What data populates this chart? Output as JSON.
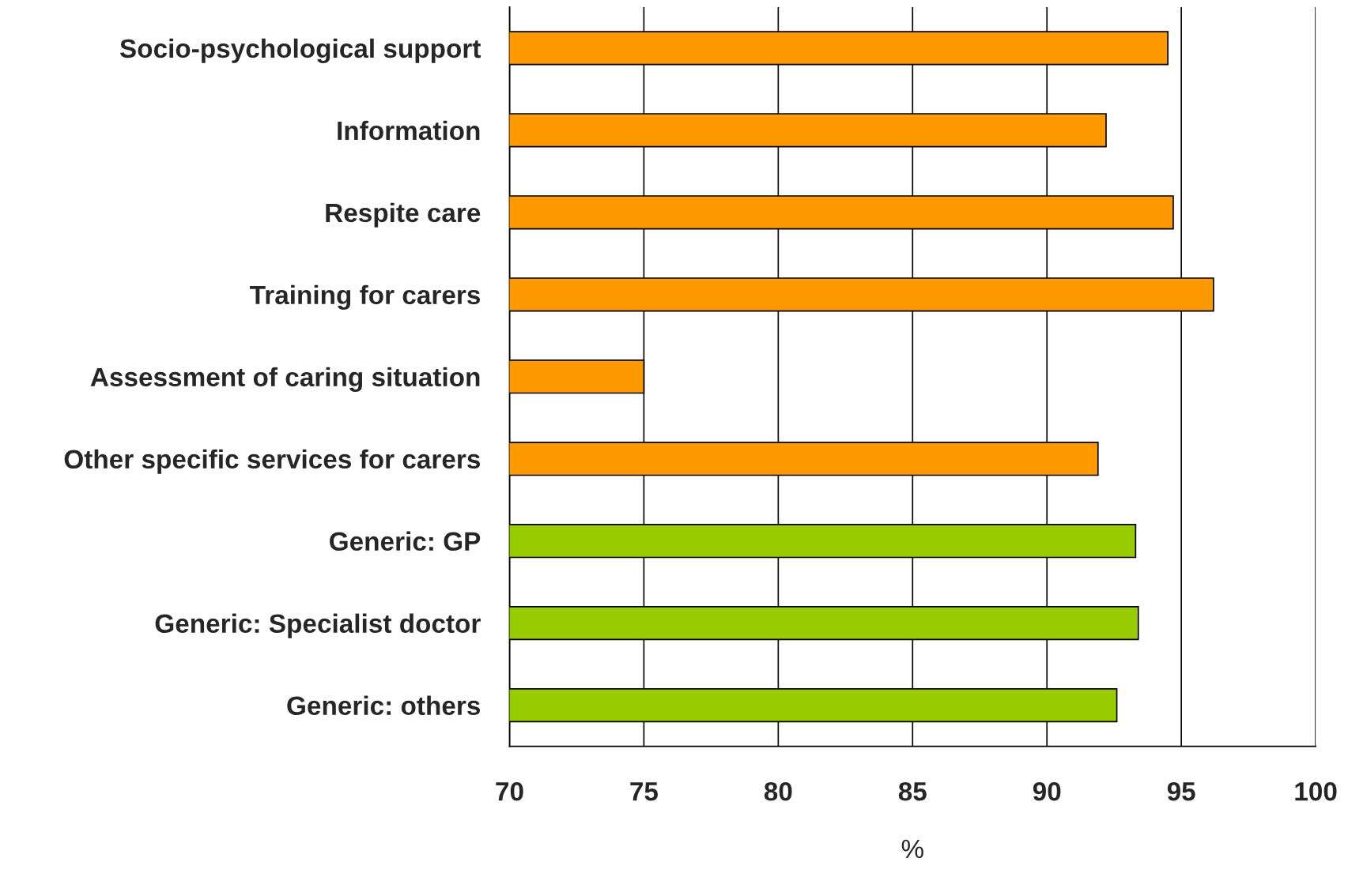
{
  "chart_data": {
    "type": "bar",
    "orientation": "horizontal",
    "xlabel": "%",
    "categories": [
      "Socio-psychological support",
      "Information",
      "Respite care",
      "Training for carers",
      "Assessment of caring situation",
      "Other specific services for carers",
      "Generic: GP",
      "Generic: Specialist doctor",
      "Generic: others"
    ],
    "values": [
      94.5,
      92.2,
      94.7,
      96.2,
      75.0,
      91.9,
      93.3,
      93.4,
      92.6
    ],
    "colors": [
      "#ff9900",
      "#ff9900",
      "#ff9900",
      "#ff9900",
      "#ff9900",
      "#ff9900",
      "#99cc00",
      "#99cc00",
      "#99cc00"
    ],
    "xlim": [
      70,
      100
    ],
    "xticks": [
      70,
      75,
      80,
      85,
      90,
      95,
      100
    ],
    "grid": "x"
  }
}
